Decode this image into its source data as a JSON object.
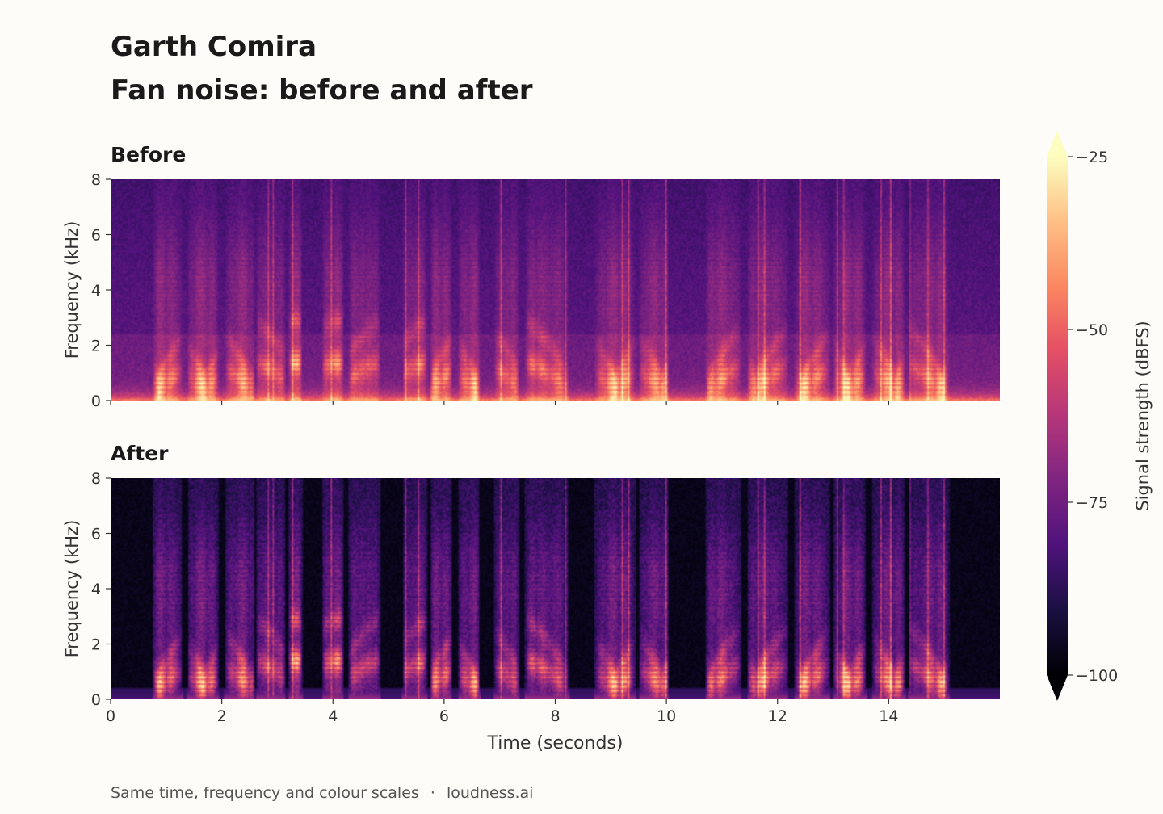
{
  "header": {
    "name": "Garth Comira",
    "title": "Fan noise: before and after"
  },
  "footer": {
    "note": "Same time, frequency and colour scales",
    "separator": "·",
    "site": "loudness.ai"
  },
  "chart_data": {
    "type": "heatmap",
    "panels": [
      {
        "title": "Before",
        "ylabel": "Frequency (kHz)",
        "ylim": [
          0,
          8
        ],
        "yticks": [
          0,
          2,
          4,
          6,
          8
        ],
        "noise_floor": "fan noise present"
      },
      {
        "title": "After",
        "ylabel": "Frequency (kHz)",
        "ylim": [
          0,
          8
        ],
        "yticks": [
          0,
          2,
          4,
          6,
          8
        ]
      }
    ],
    "xlabel": "Time (seconds)",
    "xlim": [
      0,
      16
    ],
    "xticks": [
      0,
      2,
      4,
      6,
      8,
      10,
      12,
      14
    ],
    "colorbar": {
      "label": "Signal strength (dBFS)",
      "range": [
        -100,
        -25
      ],
      "ticks": [
        -25,
        -50,
        -75,
        -100
      ],
      "colormap": "magma",
      "extend": "both"
    },
    "speech_segments_seconds": [
      [
        0.75,
        1.3
      ],
      [
        1.38,
        1.95
      ],
      [
        2.05,
        2.6
      ],
      [
        2.62,
        3.15
      ],
      [
        3.2,
        3.45
      ],
      [
        3.8,
        4.2
      ],
      [
        4.28,
        4.85
      ],
      [
        5.25,
        5.7
      ],
      [
        5.75,
        6.15
      ],
      [
        6.25,
        6.65
      ],
      [
        6.9,
        7.35
      ],
      [
        7.45,
        8.25
      ],
      [
        8.7,
        9.45
      ],
      [
        9.5,
        10.05
      ],
      [
        10.7,
        11.35
      ],
      [
        11.45,
        12.2
      ],
      [
        12.3,
        12.95
      ],
      [
        13.0,
        13.6
      ],
      [
        13.7,
        14.3
      ],
      [
        14.35,
        15.1
      ]
    ]
  }
}
